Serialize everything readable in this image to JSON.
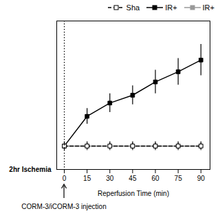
{
  "chart_data": {
    "type": "line",
    "x": [
      0,
      15,
      30,
      45,
      60,
      75,
      90
    ],
    "xlabel": "Reperfusion Time (min)",
    "xlim": [
      -5,
      96
    ],
    "xticks": [
      0,
      15,
      30,
      45,
      60,
      75,
      90
    ],
    "ylim": [
      0.7,
      2.6
    ],
    "tick_labels": "x",
    "grid": false,
    "legend": "upper right",
    "series": [
      {
        "name": "Sha",
        "color": "#000000",
        "marker": "open_square",
        "line_style": "dashed",
        "values": [
          1.0,
          1.0,
          1.0,
          1.0,
          1.0,
          1.0,
          1.0
        ],
        "errors": [
          0.05,
          0.05,
          0.05,
          0.05,
          0.05,
          0.05,
          0.05
        ]
      },
      {
        "name": "IR+",
        "color": "#000000",
        "marker": "square",
        "line_style": "solid",
        "values": [
          1.0,
          1.38,
          1.55,
          1.65,
          1.82,
          1.95,
          2.1
        ],
        "errors": [
          0.05,
          0.1,
          0.12,
          0.12,
          0.15,
          0.17,
          0.2
        ]
      },
      {
        "name": "IR+",
        "color": "#999999",
        "marker": "square",
        "line_style": "solid",
        "values": [
          1.0,
          1.0,
          1.0,
          1.0,
          1.0,
          1.0,
          1.0
        ],
        "errors": [
          0.06,
          0.06,
          0.06,
          0.06,
          0.06,
          0.06,
          0.06
        ]
      }
    ],
    "annotations": [
      {
        "text": "2hr Ischemia"
      },
      {
        "text": "CORM-3/iCORM-3 injection",
        "x": 0
      }
    ]
  }
}
